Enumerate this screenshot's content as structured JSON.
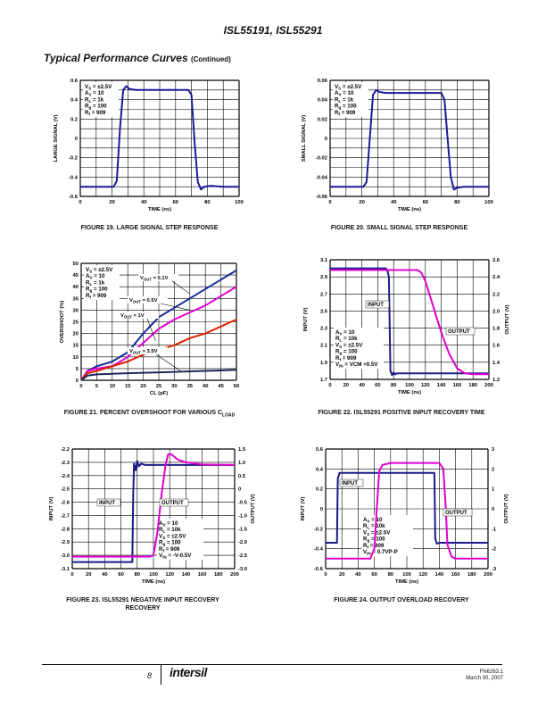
{
  "document": {
    "header_title": "ISL55191, ISL55291",
    "section_title": "Typical Performance Curves",
    "section_suffix": "(Continued)",
    "page_number": "8",
    "logo_text": "intersil",
    "doc_number": "FN6263.1",
    "doc_date": "March 30, 2007"
  },
  "chart_data": [
    {
      "id": "fig19",
      "type": "line",
      "caption": "FIGURE 19.  LARGE SIGNAL STEP RESPONSE",
      "xlabel": "TIME (ns)",
      "ylabel": "LARGE SIGNAL (V)",
      "xlim": [
        0,
        100
      ],
      "ylim": [
        -0.6,
        0.6
      ],
      "xticks": [
        0,
        20,
        40,
        60,
        80,
        100
      ],
      "yticks": [
        -0.6,
        -0.4,
        -0.2,
        0,
        0.2,
        0.4,
        0.6
      ],
      "ytick_labels": [
        "-0.6",
        "-0.4",
        "-0.2",
        "0",
        "0.2",
        "0.4",
        "0.6"
      ],
      "legend": [
        "VS = ±2.5V",
        "AV = 10",
        "RL = 1k",
        "Rg = 100",
        "Rf = 909"
      ],
      "series": [
        {
          "name": "step",
          "color": "#1a1a9a",
          "x": [
            0,
            21,
            23,
            25,
            27,
            29,
            31,
            35,
            40,
            50,
            60,
            68,
            70,
            72,
            74,
            76,
            78,
            82,
            90,
            100
          ],
          "y": [
            -0.5,
            -0.5,
            -0.44,
            0.1,
            0.5,
            0.54,
            0.51,
            0.5,
            0.5,
            0.5,
            0.5,
            0.5,
            0.45,
            -0.05,
            -0.45,
            -0.53,
            -0.5,
            -0.49,
            -0.5,
            -0.5
          ]
        }
      ]
    },
    {
      "id": "fig20",
      "type": "line",
      "caption": "FIGURE 20.  SMALL SIGNAL STEP RESPONSE",
      "xlabel": "TIME (ns)",
      "ylabel": "SMALL SIGNAL (V)",
      "xlim": [
        0,
        100
      ],
      "ylim": [
        -0.06,
        0.06
      ],
      "xticks": [
        0,
        20,
        40,
        60,
        80,
        100
      ],
      "yticks": [
        -0.06,
        -0.04,
        -0.02,
        0,
        0.02,
        0.04,
        0.06
      ],
      "ytick_labels": [
        "-0.06",
        "-0.04",
        "-0.02",
        "0",
        "0.02",
        "0.04",
        "0.06"
      ],
      "legend": [
        "VS = ±2.5V",
        "AV = 10",
        "RL = 1k",
        "Rg = 100",
        "Rf = 909"
      ],
      "series": [
        {
          "name": "step",
          "color": "#1a1a9a",
          "x": [
            0,
            21,
            23,
            25,
            27,
            29,
            31,
            35,
            40,
            50,
            60,
            70,
            72,
            74,
            76,
            78,
            80,
            84,
            90,
            100
          ],
          "y": [
            -0.05,
            -0.05,
            -0.045,
            0.0,
            0.045,
            0.05,
            0.048,
            0.047,
            0.047,
            0.047,
            0.047,
            0.047,
            0.04,
            0.0,
            -0.04,
            -0.053,
            -0.051,
            -0.05,
            -0.05,
            -0.05
          ]
        }
      ]
    },
    {
      "id": "fig21",
      "type": "line",
      "caption": "FIGURE 21.  PERCENT OVERSHOOT FOR VARIOUS C",
      "caption_sub": "LOAD",
      "xlabel": "CL (pF)",
      "ylabel": "OVERSHOOT (%)",
      "xlim": [
        0,
        50
      ],
      "ylim": [
        0,
        50
      ],
      "xticks": [
        0,
        5,
        10,
        15,
        20,
        25,
        30,
        35,
        40,
        45,
        50
      ],
      "yticks": [
        0,
        5,
        10,
        15,
        20,
        25,
        30,
        35,
        40,
        45,
        50
      ],
      "ytick_labels": [
        "0",
        "5",
        "10",
        "15",
        "20",
        "25",
        "30",
        "35",
        "40",
        "45",
        "50"
      ],
      "legend": [
        "VS = ±2.5V",
        "AV = 10",
        "RL = 1k",
        "Rg = 100",
        "Rf = 909"
      ],
      "series": [
        {
          "name": "VOUT = 0.1V",
          "color": "#1a2a9a",
          "x": [
            0,
            2,
            5,
            10,
            15,
            20,
            25,
            30,
            35,
            40,
            45,
            50
          ],
          "y": [
            0,
            4,
            6,
            8,
            12,
            20,
            27,
            31,
            35,
            39,
            43,
            47
          ]
        },
        {
          "name": "VOUT = 0.5V",
          "color": "#e000d0",
          "x": [
            0,
            2,
            5,
            10,
            15,
            20,
            25,
            30,
            35,
            40,
            45,
            50
          ],
          "y": [
            0,
            4,
            5,
            6,
            10,
            16,
            22,
            26,
            29,
            32,
            36,
            40
          ]
        },
        {
          "name": "VOUT = 1V",
          "color": "#e02000",
          "x": [
            0,
            2,
            5,
            10,
            15,
            20,
            25,
            30,
            35,
            40,
            45,
            50
          ],
          "y": [
            0,
            3,
            4,
            6,
            8,
            11,
            13,
            15,
            18,
            20,
            23,
            26
          ]
        },
        {
          "name": "VOUT = 3.5V",
          "color": "#1a2a5a",
          "x": [
            0,
            2,
            5,
            10,
            15,
            20,
            25,
            30,
            35,
            40,
            45,
            50
          ],
          "y": [
            0,
            2,
            2.5,
            2.8,
            3,
            3.2,
            3.4,
            3.6,
            3.8,
            4,
            4.2,
            4.5
          ]
        }
      ],
      "annotations": [
        "VOUT = 0.1V",
        "VOUT = 0.5V",
        "VOUT = 1V",
        "VOUT = 3.5V"
      ]
    },
    {
      "id": "fig22",
      "type": "line",
      "caption": "FIGURE 22.  ISL55291 POSITIVE INPUT RECOVERY TIME",
      "xlabel": "TIME (ns)",
      "ylabel": "INPUT (V)",
      "y2label": "OUTPUT (V)",
      "xlim": [
        0,
        200
      ],
      "ylim": [
        1.7,
        3.1
      ],
      "y2lim": [
        1.2,
        2.6
      ],
      "xticks": [
        0,
        20,
        40,
        60,
        80,
        100,
        120,
        140,
        160,
        180,
        200
      ],
      "yticks": [
        1.7,
        1.9,
        2.1,
        2.3,
        2.5,
        2.7,
        2.9,
        3.1
      ],
      "ytick_labels": [
        "1.7",
        "1.9",
        "2.1",
        "2.3",
        "2.5",
        "2.7",
        "2.9",
        "3.1"
      ],
      "y2ticks": [
        1.2,
        1.4,
        1.6,
        1.8,
        2.0,
        2.2,
        2.4,
        2.6
      ],
      "y2tick_labels": [
        "1.2",
        "1.4",
        "1.6",
        "1.8",
        "2.0",
        "2.2",
        "2.4",
        "2.6"
      ],
      "legend": [
        "AV = 10",
        "RL = 10k",
        "VS = ±2.5V",
        "Rg = 100",
        "Rf = 909",
        "VIN = VCM +0.5V"
      ],
      "labels": [
        "INPUT",
        "OUTPUT"
      ],
      "series": [
        {
          "name": "INPUT",
          "axis": "left",
          "color": "#1a1a8a",
          "x": [
            0,
            70,
            72,
            74,
            76,
            78,
            80,
            82,
            84,
            86,
            90,
            120,
            160,
            200
          ],
          "y": [
            3.0,
            3.0,
            2.98,
            2.9,
            1.8,
            1.75,
            1.78,
            1.76,
            1.77,
            1.77,
            1.77,
            1.77,
            1.77,
            1.77
          ]
        },
        {
          "name": "OUTPUT",
          "axis": "right",
          "color": "#e000d0",
          "x": [
            0,
            60,
            80,
            100,
            110,
            115,
            120,
            130,
            140,
            150,
            160,
            170,
            180,
            190,
            200
          ],
          "y": [
            2.48,
            2.48,
            2.48,
            2.48,
            2.48,
            2.45,
            2.35,
            2.05,
            1.75,
            1.5,
            1.33,
            1.27,
            1.26,
            1.26,
            1.26
          ]
        }
      ]
    },
    {
      "id": "fig23",
      "type": "line",
      "caption": "FIGURE 23.  ISL55291 NEGATIVE INPUT RECOVERY",
      "caption2": "RECOVERY",
      "xlabel": "TIME (ns)",
      "ylabel": "INPUT (V)",
      "y2label": "OUTPUT (V)",
      "xlim": [
        0,
        200
      ],
      "ylim": [
        -3.1,
        -2.2
      ],
      "y2lim": [
        -3.0,
        1.5
      ],
      "xticks": [
        0,
        20,
        40,
        60,
        80,
        100,
        120,
        140,
        160,
        180,
        200
      ],
      "yticks": [
        -3.1,
        -3.0,
        -2.9,
        -2.8,
        -2.7,
        -2.6,
        -2.5,
        -2.4,
        -2.3,
        -2.2
      ],
      "ytick_labels": [
        "-3.1",
        "-3.0",
        "-2.9",
        "-2.8",
        "-2.7",
        "-2.6",
        "-2.5",
        "-2.4",
        "-2.3",
        "-2.2"
      ],
      "y2ticks": [
        -3.0,
        -2.5,
        -2.0,
        -1.5,
        -1.0,
        -0.5,
        0,
        0.5,
        1.0,
        1.5
      ],
      "y2tick_labels": [
        "-3.0",
        "-2.5",
        "-2.0",
        "-1.5",
        "-1.0",
        "-0.5",
        "0",
        "0.5",
        "1.0",
        "1.5"
      ],
      "legend": [
        "AV = 10",
        "RL = 10k",
        "VS = ±2.5V",
        "Rg = 100",
        "Rf = 909",
        "VIN = -V-0.5V"
      ],
      "labels": [
        "INPUT",
        "OUTPUT"
      ],
      "series": [
        {
          "name": "INPUT",
          "axis": "left",
          "color": "#1a1a8a",
          "x": [
            0,
            74,
            75,
            76,
            78,
            80,
            82,
            85,
            90,
            100,
            120,
            160,
            200
          ],
          "y": [
            -3.05,
            -3.05,
            -2.55,
            -2.31,
            -2.36,
            -2.29,
            -2.33,
            -2.31,
            -2.32,
            -2.32,
            -2.32,
            -2.32,
            -2.32
          ]
        },
        {
          "name": "OUTPUT",
          "axis": "right",
          "color": "#e000d0",
          "x": [
            0,
            80,
            95,
            100,
            105,
            110,
            115,
            118,
            122,
            130,
            140,
            160,
            200
          ],
          "y": [
            -2.55,
            -2.55,
            -2.55,
            -2.5,
            -1.6,
            -0.2,
            0.9,
            1.3,
            1.3,
            1.1,
            1.0,
            0.92,
            0.9
          ]
        }
      ]
    },
    {
      "id": "fig24",
      "type": "line",
      "caption": "FIGURE 24.  OUTPUT OVERLOAD RECOVERY",
      "xlabel": "TIME (ns)",
      "ylabel": "INPUT (V)",
      "y2label": "OUTPUT (V)",
      "xlim": [
        0,
        200
      ],
      "ylim": [
        -0.6,
        0.6
      ],
      "y2lim": [
        -3,
        3
      ],
      "xticks": [
        0,
        20,
        40,
        60,
        80,
        100,
        120,
        140,
        160,
        180,
        200
      ],
      "yticks": [
        -0.6,
        -0.4,
        -0.2,
        0,
        0.2,
        0.4,
        0.6
      ],
      "ytick_labels": [
        "-0.6",
        "-0.4",
        "-0.2",
        "0",
        "0.2",
        "0.4",
        "0.6"
      ],
      "y2ticks": [
        -3,
        -2,
        -1,
        0,
        1,
        2,
        3
      ],
      "y2tick_labels": [
        "-3",
        "-2",
        "-1",
        "0",
        "1",
        "2",
        "3"
      ],
      "legend": [
        "AV = 10",
        "RL = 10k",
        "VS = ±2.5V",
        "Rg = 100",
        "Rf = 909",
        "VIN = 0.7VP-P"
      ],
      "labels": [
        "INPUT",
        "OUTPUT"
      ],
      "series": [
        {
          "name": "INPUT",
          "axis": "left",
          "color": "#1a1a8a",
          "x": [
            0,
            14,
            15,
            17,
            20,
            40,
            80,
            120,
            134,
            135,
            137,
            140,
            160,
            200
          ],
          "y": [
            -0.34,
            -0.34,
            0.3,
            0.36,
            0.36,
            0.36,
            0.36,
            0.36,
            0.36,
            -0.3,
            -0.35,
            -0.34,
            -0.34,
            -0.34
          ]
        },
        {
          "name": "OUTPUT",
          "axis": "right",
          "color": "#e000d0",
          "x": [
            0,
            15,
            20,
            40,
            55,
            60,
            63,
            66,
            70,
            80,
            100,
            120,
            140,
            145,
            148,
            150,
            155,
            160,
            170,
            200
          ],
          "y": [
            -2.5,
            -2.5,
            -2.5,
            -2.5,
            -2.5,
            -2.0,
            0,
            1.9,
            2.2,
            2.3,
            2.3,
            2.3,
            2.3,
            2.0,
            0,
            -1.8,
            -2.4,
            -2.5,
            -2.5,
            -2.5
          ]
        }
      ]
    }
  ]
}
